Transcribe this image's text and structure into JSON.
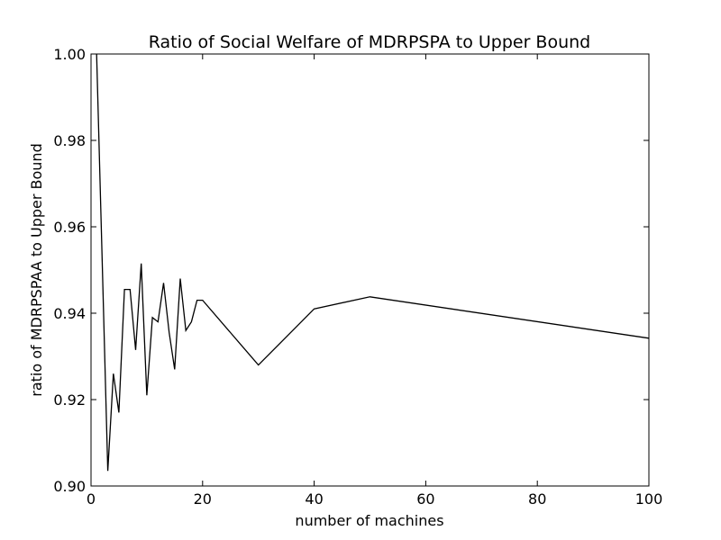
{
  "chart_data": {
    "type": "line",
    "title": "Ratio of  Social Welfare of  MDRPSPA to Upper Bound",
    "xlabel": "number of machines",
    "ylabel": "ratio of MDRPSPAA to Upper Bound",
    "xlim": [
      0,
      100
    ],
    "ylim": [
      0.9,
      1.0
    ],
    "xticks": [
      0,
      20,
      40,
      60,
      80,
      100
    ],
    "xtick_labels": [
      "0",
      "20",
      "40",
      "60",
      "80",
      "100"
    ],
    "yticks": [
      0.9,
      0.92,
      0.94,
      0.96,
      0.98,
      1.0
    ],
    "ytick_labels": [
      "0.90",
      "0.92",
      "0.94",
      "0.96",
      "0.98",
      "1.00"
    ],
    "grid": false,
    "series": [
      {
        "color": "#000000",
        "x": [
          1,
          2,
          3,
          4,
          5,
          6,
          7,
          8,
          9,
          10,
          11,
          12,
          13,
          14,
          15,
          16,
          17,
          18,
          19,
          20,
          30,
          40,
          50,
          100
        ],
        "y": [
          1.0,
          0.952,
          0.9035,
          0.926,
          0.917,
          0.9455,
          0.9455,
          0.9315,
          0.9515,
          0.921,
          0.939,
          0.938,
          0.947,
          0.9355,
          0.927,
          0.948,
          0.936,
          0.938,
          0.943,
          0.943,
          0.928,
          0.941,
          0.9438,
          0.9342
        ]
      }
    ]
  }
}
